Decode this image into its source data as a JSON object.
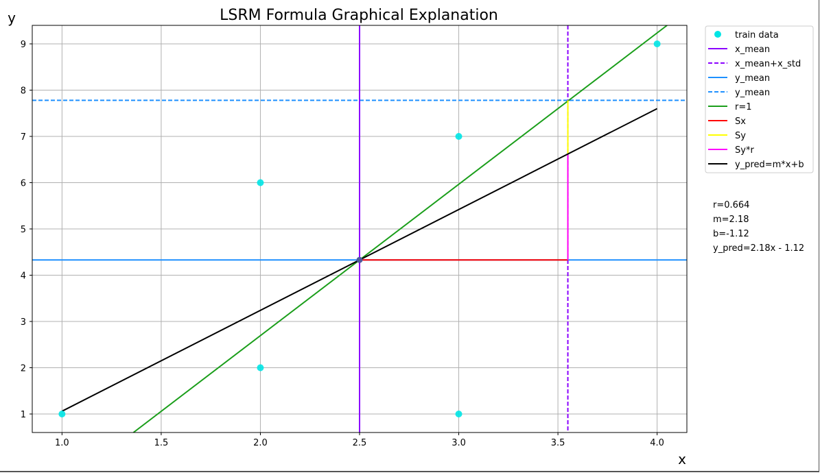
{
  "chart_data": {
    "type": "line",
    "title": "LSRM Formula Graphical Explanation",
    "xlabel": "x",
    "ylabel": "y",
    "xlim": [
      0.85,
      4.15
    ],
    "ylim": [
      0.6,
      9.4
    ],
    "xticks": [
      1.0,
      1.5,
      2.0,
      2.5,
      3.0,
      3.5,
      4.0
    ],
    "xtick_labels": [
      "1.0",
      "1.5",
      "2.0",
      "2.5",
      "3.0",
      "3.5",
      "4.0"
    ],
    "yticks": [
      1,
      2,
      3,
      4,
      5,
      6,
      7,
      8,
      9
    ],
    "ytick_labels": [
      "1",
      "2",
      "3",
      "4",
      "5",
      "6",
      "7",
      "8",
      "9"
    ],
    "grid": true,
    "legend_position": "outside-top-right",
    "series": [
      {
        "name": "train data",
        "kind": "scatter",
        "color": "#00e5e5",
        "x": [
          1,
          2,
          2,
          3,
          3,
          4
        ],
        "y": [
          1,
          6,
          2,
          7,
          1,
          9
        ]
      },
      {
        "name": "x_mean",
        "kind": "vline",
        "color": "#8b00ff",
        "style": "solid",
        "x": 2.5
      },
      {
        "name": "x_mean+x_std",
        "kind": "vline",
        "color": "#8b00ff",
        "style": "dashed",
        "x": 3.55
      },
      {
        "name": "y_mean",
        "kind": "hline",
        "color": "#1e90ff",
        "style": "solid",
        "y": 4.33
      },
      {
        "name": "y_mean",
        "kind": "hline",
        "color": "#1e90ff",
        "style": "dashed",
        "y": 7.78
      },
      {
        "name": "r=1",
        "kind": "line",
        "color": "#1a9e1a",
        "style": "solid",
        "x": [
          1.36,
          4.05
        ],
        "y": [
          0.6,
          9.4
        ]
      },
      {
        "name": "Sx",
        "kind": "line",
        "color": "#ff0000",
        "style": "solid",
        "x": [
          2.5,
          3.55
        ],
        "y": [
          4.33,
          4.33
        ]
      },
      {
        "name": "Sy",
        "kind": "line",
        "color": "#ffff00",
        "style": "solid",
        "x": [
          3.55,
          3.55
        ],
        "y": [
          4.33,
          7.78
        ]
      },
      {
        "name": "Sy*r",
        "kind": "line",
        "color": "#ff00ff",
        "style": "solid",
        "x": [
          3.55,
          3.55
        ],
        "y": [
          4.33,
          6.62
        ]
      },
      {
        "name": "y_pred=m*x+b",
        "kind": "line",
        "color": "#000000",
        "style": "solid",
        "x": [
          1,
          4
        ],
        "y": [
          1.06,
          7.6
        ]
      }
    ],
    "mean_point": {
      "x": 2.5,
      "y": 4.33,
      "color": "#4f5b9c"
    },
    "annotations": [
      "r=0.664",
      "m=2.18",
      "b=-1.12",
      "y_pred=2.18x - 1.12"
    ]
  }
}
